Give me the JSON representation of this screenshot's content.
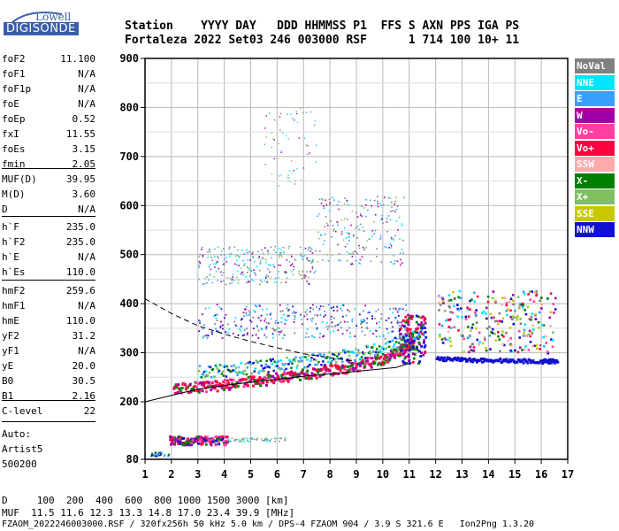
{
  "logo": {
    "top": "Lowell",
    "bottom": "DIGISONDE"
  },
  "header": {
    "line1": "Station    YYYY DAY   DDD HHMMSS P1  FFS S AXN PPS IGA PS",
    "line2": "Fortaleza 2022 Set03 246 003000 RSF      1 714 100 10+ 11"
  },
  "params_group1": [
    {
      "name": "foF2",
      "value": "11.100"
    },
    {
      "name": "foF1",
      "value": "N/A"
    },
    {
      "name": "foF1p",
      "value": "N/A"
    },
    {
      "name": "foE",
      "value": "N/A"
    },
    {
      "name": "foEp",
      "value": "0.52"
    },
    {
      "name": "fxI",
      "value": "11.55"
    },
    {
      "name": "foEs",
      "value": "3.15"
    },
    {
      "name": "fmin",
      "value": "2.05"
    }
  ],
  "params_group2": [
    {
      "name": "MUF(D)",
      "value": "39.95"
    },
    {
      "name": "M(D)",
      "value": "3.60"
    },
    {
      "name": "D",
      "value": "N/A"
    }
  ],
  "params_group3": [
    {
      "name": "h`F",
      "value": "235.0"
    },
    {
      "name": "h`F2",
      "value": "235.0"
    },
    {
      "name": "h`E",
      "value": "N/A"
    },
    {
      "name": "h`Es",
      "value": "110.0"
    }
  ],
  "params_group4": [
    {
      "name": "hmF2",
      "value": "259.6"
    },
    {
      "name": "hmF1",
      "value": "N/A"
    },
    {
      "name": "hmE",
      "value": "110.0"
    },
    {
      "name": "yF2",
      "value": "31.2"
    },
    {
      "name": "yF1",
      "value": "N/A"
    },
    {
      "name": "yE",
      "value": "20.0"
    },
    {
      "name": "B0",
      "value": "30.5"
    },
    {
      "name": "B1",
      "value": "2.16"
    }
  ],
  "params_group5": [
    {
      "name": "C-level",
      "value": "22"
    }
  ],
  "autoscaling": [
    "Auto:",
    "Artist5",
    "500200"
  ],
  "legend": [
    {
      "label": "NoVal",
      "color": "#808080"
    },
    {
      "label": "NNE",
      "color": "#00e5ff"
    },
    {
      "label": "E",
      "color": "#3aa0ff"
    },
    {
      "label": "W",
      "color": "#a000a8"
    },
    {
      "label": "Vo-",
      "color": "#ff40a0"
    },
    {
      "label": "Vo+",
      "color": "#ff0040"
    },
    {
      "label": "SSW",
      "color": "#ffaaaa"
    },
    {
      "label": "X-",
      "color": "#008000"
    },
    {
      "label": "X+",
      "color": "#80c060"
    },
    {
      "label": "SSE",
      "color": "#c8c800"
    },
    {
      "label": "NNW",
      "color": "#1010d0"
    }
  ],
  "bottom": {
    "line1": "D     100  200  400  600  800 1000 1500 3000 [km]",
    "line2": "MUF  11.5 11.6 12.3 13.3 14.8 17.0 23.4 39.9 [MHz]",
    "line3": "FZAOM_2022246003000.RSF / 320fx256h 50 kHz 5.0 km / DPS-4 FZAOM 904 / 3.9 S 321.6 E   Ion2Png 1.3.20"
  },
  "chart_data": {
    "type": "scatter",
    "x_ticks": [
      "1",
      "2",
      "3",
      "4",
      "5",
      "6",
      "7",
      "8",
      "9",
      "10",
      "11",
      "12",
      "13",
      "14",
      "15",
      "16",
      "17"
    ],
    "y_ticks": [
      "80",
      "200",
      "300",
      "400",
      "500",
      "600",
      "700",
      "800",
      "900"
    ],
    "xlim": [
      1,
      17
    ],
    "ylim": [
      80,
      900
    ],
    "grid": true,
    "legend_position": "right",
    "traces": [
      {
        "name": "F2 O-trace",
        "points": [
          [
            2.05,
            228
          ],
          [
            3,
            232
          ],
          [
            4,
            237
          ],
          [
            5,
            243
          ],
          [
            6,
            250
          ],
          [
            7,
            258
          ],
          [
            8,
            266
          ],
          [
            9,
            276
          ],
          [
            10,
            290
          ],
          [
            10.6,
            305
          ],
          [
            11.1,
            325
          ]
        ]
      },
      {
        "name": "F2 X-trace",
        "points": [
          [
            3,
            262
          ],
          [
            4,
            266
          ],
          [
            5,
            272
          ],
          [
            6,
            278
          ],
          [
            7,
            284
          ],
          [
            8,
            292
          ],
          [
            9,
            300
          ],
          [
            10,
            312
          ],
          [
            11,
            330
          ],
          [
            11.55,
            350
          ]
        ]
      },
      {
        "name": "Es",
        "points": [
          [
            2,
            120
          ],
          [
            3,
            122
          ],
          [
            3.15,
            123
          ]
        ]
      },
      {
        "name": "NNW oblique",
        "points": [
          [
            12,
            290
          ],
          [
            13,
            288
          ],
          [
            14,
            287
          ],
          [
            15,
            286
          ],
          [
            16,
            285
          ],
          [
            16.6,
            285
          ]
        ]
      }
    ],
    "profile_curves": [
      {
        "points": [
          [
            1,
            200
          ],
          [
            3,
            226
          ],
          [
            5,
            240
          ],
          [
            7,
            252
          ],
          [
            9,
            262
          ],
          [
            10.5,
            270
          ],
          [
            11.1,
            280
          ]
        ]
      },
      {
        "points": [
          [
            1,
            410
          ],
          [
            2,
            380
          ],
          [
            3,
            355
          ],
          [
            4,
            338
          ],
          [
            5,
            323
          ],
          [
            6,
            310
          ],
          [
            7,
            298
          ],
          [
            8,
            290
          ],
          [
            9,
            282
          ]
        ]
      }
    ]
  }
}
